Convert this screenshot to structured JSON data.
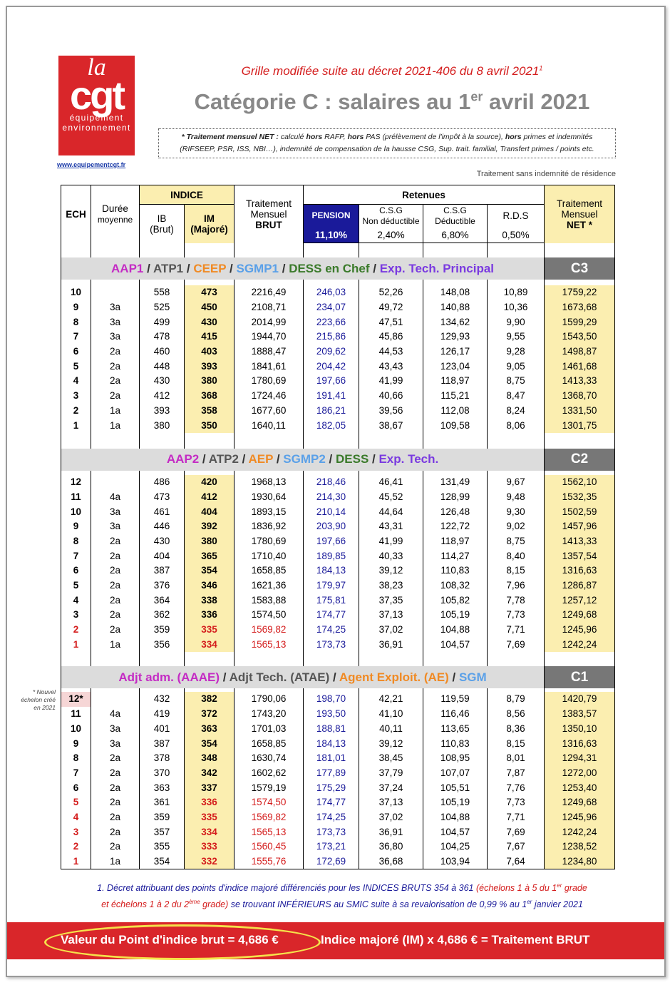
{
  "logo": {
    "la": "la",
    "cgt": "cgt",
    "line1": "équipement",
    "line2": "environnement",
    "url": "www.equipementcgt.fr"
  },
  "header": {
    "subtitle": "Grille modifiée suite au décret 2021-406 du 8 avril 2021",
    "subtitle_note": "1",
    "title": [
      "Catégorie C : salaires au 1",
      "er",
      " avril 2021"
    ],
    "note": [
      "* Traitement mensuel NET :",
      " calculé ",
      "hors",
      " RAFP, ",
      "hors",
      " PAS (prélèvement de l'impôt à la source), ",
      "hors",
      " primes et indemnités (RIFSEEP, PSR, ISS, NBI…), indemnité de compensation de la hausse CSG, Sup. trait. familial, Transfert primes / points etc."
    ],
    "residence": "Traitement sans indemnité de résidence"
  },
  "table": {
    "head": {
      "ech": "ECH",
      "duree": [
        "Durée",
        "moyenne"
      ],
      "indice": "INDICE",
      "ib": [
        "IB",
        "(Brut)"
      ],
      "im": [
        "IM",
        "(Majoré)"
      ],
      "brut": [
        "Traitement",
        "Mensuel",
        "BRUT"
      ],
      "retenues": "Retenues",
      "pension": "PENSION",
      "pension_rate": "11,10%",
      "csg_nd": [
        "C.S.G",
        "Non déductible"
      ],
      "csg_nd_rate": "2,40%",
      "csg_d": [
        "C.S.G",
        "Déductible"
      ],
      "csg_d_rate": "6,80%",
      "rds": "R.D.S",
      "rds_rate": "0,50%",
      "net": [
        "Traitement",
        "Mensuel",
        "NET *"
      ]
    },
    "groups": [
      {
        "code": "C3",
        "label": [
          {
            "text": "AAP1",
            "color": "#c42bc4"
          },
          {
            "text": " / ",
            "color": "#333333"
          },
          {
            "text": "ATP1",
            "color": "#555555"
          },
          {
            "text": " / ",
            "color": "#333333"
          },
          {
            "text": "CEEP",
            "color": "#f08a24"
          },
          {
            "text": " / ",
            "color": "#333333"
          },
          {
            "text": "SGMP1",
            "color": "#5aa0e8"
          },
          {
            "text": " / ",
            "color": "#333333"
          },
          {
            "text": "DESS en Chef",
            "color": "#3a7a2a"
          },
          {
            "text": " / ",
            "color": "#333333"
          },
          {
            "text": "Exp. Tech. Principal",
            "color": "#7a3ae0"
          }
        ],
        "highlight": [],
        "rows": [
          [
            "10",
            null,
            "558",
            "473",
            "2216,49",
            "246,03",
            "52,26",
            "148,08",
            "10,89",
            "1759,22"
          ],
          [
            "9",
            "3a",
            "525",
            "450",
            "2108,71",
            "234,07",
            "49,72",
            "140,88",
            "10,36",
            "1673,68"
          ],
          [
            "8",
            "3a",
            "499",
            "430",
            "2014,99",
            "223,66",
            "47,51",
            "134,62",
            "9,90",
            "1599,29"
          ],
          [
            "7",
            "3a",
            "478",
            "415",
            "1944,70",
            "215,86",
            "45,86",
            "129,93",
            "9,55",
            "1543,50"
          ],
          [
            "6",
            "2a",
            "460",
            "403",
            "1888,47",
            "209,62",
            "44,53",
            "126,17",
            "9,28",
            "1498,87"
          ],
          [
            "5",
            "2a",
            "448",
            "393",
            "1841,61",
            "204,42",
            "43,43",
            "123,04",
            "9,05",
            "1461,68"
          ],
          [
            "4",
            "2a",
            "430",
            "380",
            "1780,69",
            "197,66",
            "41,99",
            "118,97",
            "8,75",
            "1413,33"
          ],
          [
            "3",
            "2a",
            "412",
            "368",
            "1724,46",
            "191,41",
            "40,66",
            "115,21",
            "8,47",
            "1368,70"
          ],
          [
            "2",
            "1a",
            "393",
            "358",
            "1677,60",
            "186,21",
            "39,56",
            "112,08",
            "8,24",
            "1331,50"
          ],
          [
            "1",
            "1a",
            "380",
            "350",
            "1640,11",
            "182,05",
            "38,67",
            "109,58",
            "8,06",
            "1301,75"
          ]
        ]
      },
      {
        "code": "C2",
        "label": [
          {
            "text": "AAP2",
            "color": "#c42bc4"
          },
          {
            "text": " / ",
            "color": "#333333"
          },
          {
            "text": "ATP2",
            "color": "#555555"
          },
          {
            "text": " / ",
            "color": "#333333"
          },
          {
            "text": "AEP",
            "color": "#f08a24"
          },
          {
            "text": " / ",
            "color": "#333333"
          },
          {
            "text": "SGMP2",
            "color": "#5aa0e8"
          },
          {
            "text": " / ",
            "color": "#333333"
          },
          {
            "text": "DESS",
            "color": "#3a7a2a"
          },
          {
            "text": " / ",
            "color": "#333333"
          },
          {
            "text": "Exp. Tech.",
            "color": "#7a3ae0"
          }
        ],
        "highlight": [
          10,
          11
        ],
        "rows": [
          [
            "12",
            null,
            "486",
            "420",
            "1968,13",
            "218,46",
            "46,41",
            "131,49",
            "9,67",
            "1562,10"
          ],
          [
            "11",
            "4a",
            "473",
            "412",
            "1930,64",
            "214,30",
            "45,52",
            "128,99",
            "9,48",
            "1532,35"
          ],
          [
            "10",
            "3a",
            "461",
            "404",
            "1893,15",
            "210,14",
            "44,64",
            "126,48",
            "9,30",
            "1502,59"
          ],
          [
            "9",
            "3a",
            "446",
            "392",
            "1836,92",
            "203,90",
            "43,31",
            "122,72",
            "9,02",
            "1457,96"
          ],
          [
            "8",
            "2a",
            "430",
            "380",
            "1780,69",
            "197,66",
            "41,99",
            "118,97",
            "8,75",
            "1413,33"
          ],
          [
            "7",
            "2a",
            "404",
            "365",
            "1710,40",
            "189,85",
            "40,33",
            "114,27",
            "8,40",
            "1357,54"
          ],
          [
            "6",
            "2a",
            "387",
            "354",
            "1658,85",
            "184,13",
            "39,12",
            "110,83",
            "8,15",
            "1316,63"
          ],
          [
            "5",
            "2a",
            "376",
            "346",
            "1621,36",
            "179,97",
            "38,23",
            "108,32",
            "7,96",
            "1286,87"
          ],
          [
            "4",
            "2a",
            "364",
            "338",
            "1583,88",
            "175,81",
            "37,35",
            "105,82",
            "7,78",
            "1257,12"
          ],
          [
            "3",
            "2a",
            "362",
            "336",
            "1574,50",
            "174,77",
            "37,13",
            "105,19",
            "7,73",
            "1249,68"
          ],
          [
            "2",
            "2a",
            "359",
            "335",
            "1569,82",
            "174,25",
            "37,02",
            "104,88",
            "7,71",
            "1245,96"
          ],
          [
            "1",
            "1a",
            "356",
            "334",
            "1565,13",
            "173,73",
            "36,91",
            "104,57",
            "7,69",
            "1242,24"
          ]
        ]
      },
      {
        "code": "C1",
        "label": [
          {
            "text": "Adjt adm. (AAAE)",
            "color": "#c42bc4"
          },
          {
            "text": " / ",
            "color": "#333333"
          },
          {
            "text": "Adjt Tech. (ATAE)",
            "color": "#555555"
          },
          {
            "text": " / ",
            "color": "#333333"
          },
          {
            "text": "Agent Exploit. (AE)",
            "color": "#f08a24"
          },
          {
            "text": " / ",
            "color": "#333333"
          },
          {
            "text": "SGM",
            "color": "#5aa0e8"
          }
        ],
        "highlight": [
          7,
          8,
          9,
          10,
          11
        ],
        "side_note": [
          "* Nouvel",
          "échelon créé",
          "en 2021"
        ],
        "rows": [
          [
            "12*",
            null,
            "432",
            "382",
            "1790,06",
            "198,70",
            "42,21",
            "119,59",
            "8,79",
            "1420,79"
          ],
          [
            "11",
            "4a",
            "419",
            "372",
            "1743,20",
            "193,50",
            "41,10",
            "116,46",
            "8,56",
            "1383,57"
          ],
          [
            "10",
            "3a",
            "401",
            "363",
            "1701,03",
            "188,81",
            "40,11",
            "113,65",
            "8,36",
            "1350,10"
          ],
          [
            "9",
            "3a",
            "387",
            "354",
            "1658,85",
            "184,13",
            "39,12",
            "110,83",
            "8,15",
            "1316,63"
          ],
          [
            "8",
            "2a",
            "378",
            "348",
            "1630,74",
            "181,01",
            "38,45",
            "108,95",
            "8,01",
            "1294,31"
          ],
          [
            "7",
            "2a",
            "370",
            "342",
            "1602,62",
            "177,89",
            "37,79",
            "107,07",
            "7,87",
            "1272,00"
          ],
          [
            "6",
            "2a",
            "363",
            "337",
            "1579,19",
            "175,29",
            "37,24",
            "105,51",
            "7,76",
            "1253,40"
          ],
          [
            "5",
            "2a",
            "361",
            "336",
            "1574,50",
            "174,77",
            "37,13",
            "105,19",
            "7,73",
            "1249,68"
          ],
          [
            "4",
            "2a",
            "359",
            "335",
            "1569,82",
            "174,25",
            "37,02",
            "104,88",
            "7,71",
            "1245,96"
          ],
          [
            "3",
            "2a",
            "357",
            "334",
            "1565,13",
            "173,73",
            "36,91",
            "104,57",
            "7,69",
            "1242,24"
          ],
          [
            "2",
            "2a",
            "355",
            "333",
            "1560,45",
            "173,21",
            "36,80",
            "104,25",
            "7,67",
            "1238,52"
          ],
          [
            "1",
            "1a",
            "354",
            "332",
            "1555,76",
            "172,69",
            "36,68",
            "103,94",
            "7,64",
            "1234,80"
          ]
        ]
      }
    ]
  },
  "footnote": [
    "1. Décret attribuant des points d'indice majoré différenciés pour les INDICES BRUTS 354 à 361 ",
    "(échelons 1 à 5 du 1",
    "er",
    " grade",
    "et échelons 1 à 2 du 2",
    "ème",
    " grade)",
    " se trouvant INFÉRIEURS au SMIC suite à sa revalorisation de 0,99 % au 1",
    "er",
    " janvier 2021"
  ],
  "footer": {
    "left": "Valeur du Point d'indice brut = 4,686 €",
    "right": "Indice majoré (IM) x 4,686 € = Traitement BRUT"
  }
}
